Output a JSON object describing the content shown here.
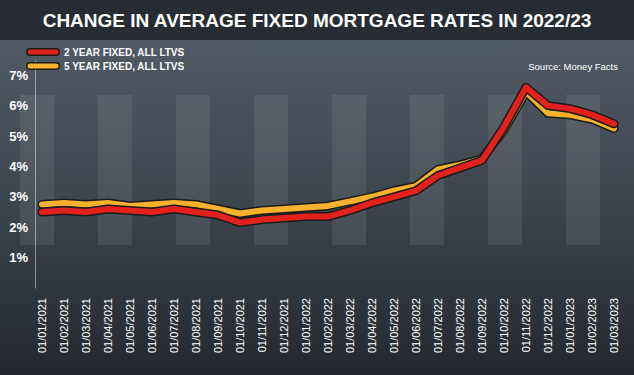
{
  "chart_data": {
    "type": "line",
    "title": "CHANGE IN AVERAGE FIXED MORTGAGE RATES IN 2022/23",
    "source": "Source: Money Facts",
    "categories": [
      "01/01/2021",
      "01/02/2021",
      "01/03/2021",
      "01/04/2021",
      "01/05/2021",
      "01/06/2021",
      "01/07/2021",
      "01/08/2021",
      "01/09/2021",
      "01/10/2021",
      "01/11/2021",
      "01/12/2021",
      "01/01/2022",
      "01/02/2022",
      "01/03/2022",
      "01/04/2022",
      "01/05/2022",
      "01/06/2022",
      "01/07/2022",
      "01/08/2022",
      "01/09/2022",
      "01/10/2022",
      "01/11/2022",
      "01/12/2022",
      "01/01/2023",
      "01/02/2023",
      "01/03/2023"
    ],
    "series": [
      {
        "name": "2 YEAR FIXED, ALL LTVS",
        "color": "#e3211c",
        "values": [
          2.5,
          2.55,
          2.5,
          2.6,
          2.55,
          2.5,
          2.6,
          2.5,
          2.4,
          2.15,
          2.25,
          2.3,
          2.35,
          2.35,
          2.55,
          2.8,
          3.0,
          3.2,
          3.7,
          3.95,
          4.2,
          5.3,
          6.6,
          6.0,
          5.9,
          5.7,
          5.4
        ]
      },
      {
        "name": "5 YEAR FIXED, ALL LTVS",
        "color": "#f6b12d",
        "values": [
          2.75,
          2.8,
          2.75,
          2.8,
          2.7,
          2.75,
          2.8,
          2.75,
          2.6,
          2.45,
          2.55,
          2.6,
          2.65,
          2.7,
          2.85,
          3.0,
          3.2,
          3.35,
          3.9,
          4.05,
          4.25,
          5.2,
          6.45,
          5.75,
          5.7,
          5.55,
          5.25
        ]
      }
    ],
    "ylim": [
      0,
      7.5
    ],
    "yticks": [
      {
        "value": 1,
        "label": "1%"
      },
      {
        "value": 2,
        "label": "2%"
      },
      {
        "value": 3,
        "label": "3%"
      },
      {
        "value": 4,
        "label": "4%"
      },
      {
        "value": 5,
        "label": "5%"
      },
      {
        "value": 6,
        "label": "6%"
      },
      {
        "value": 7,
        "label": "7%"
      }
    ],
    "legend": "top-left",
    "grid": false
  }
}
